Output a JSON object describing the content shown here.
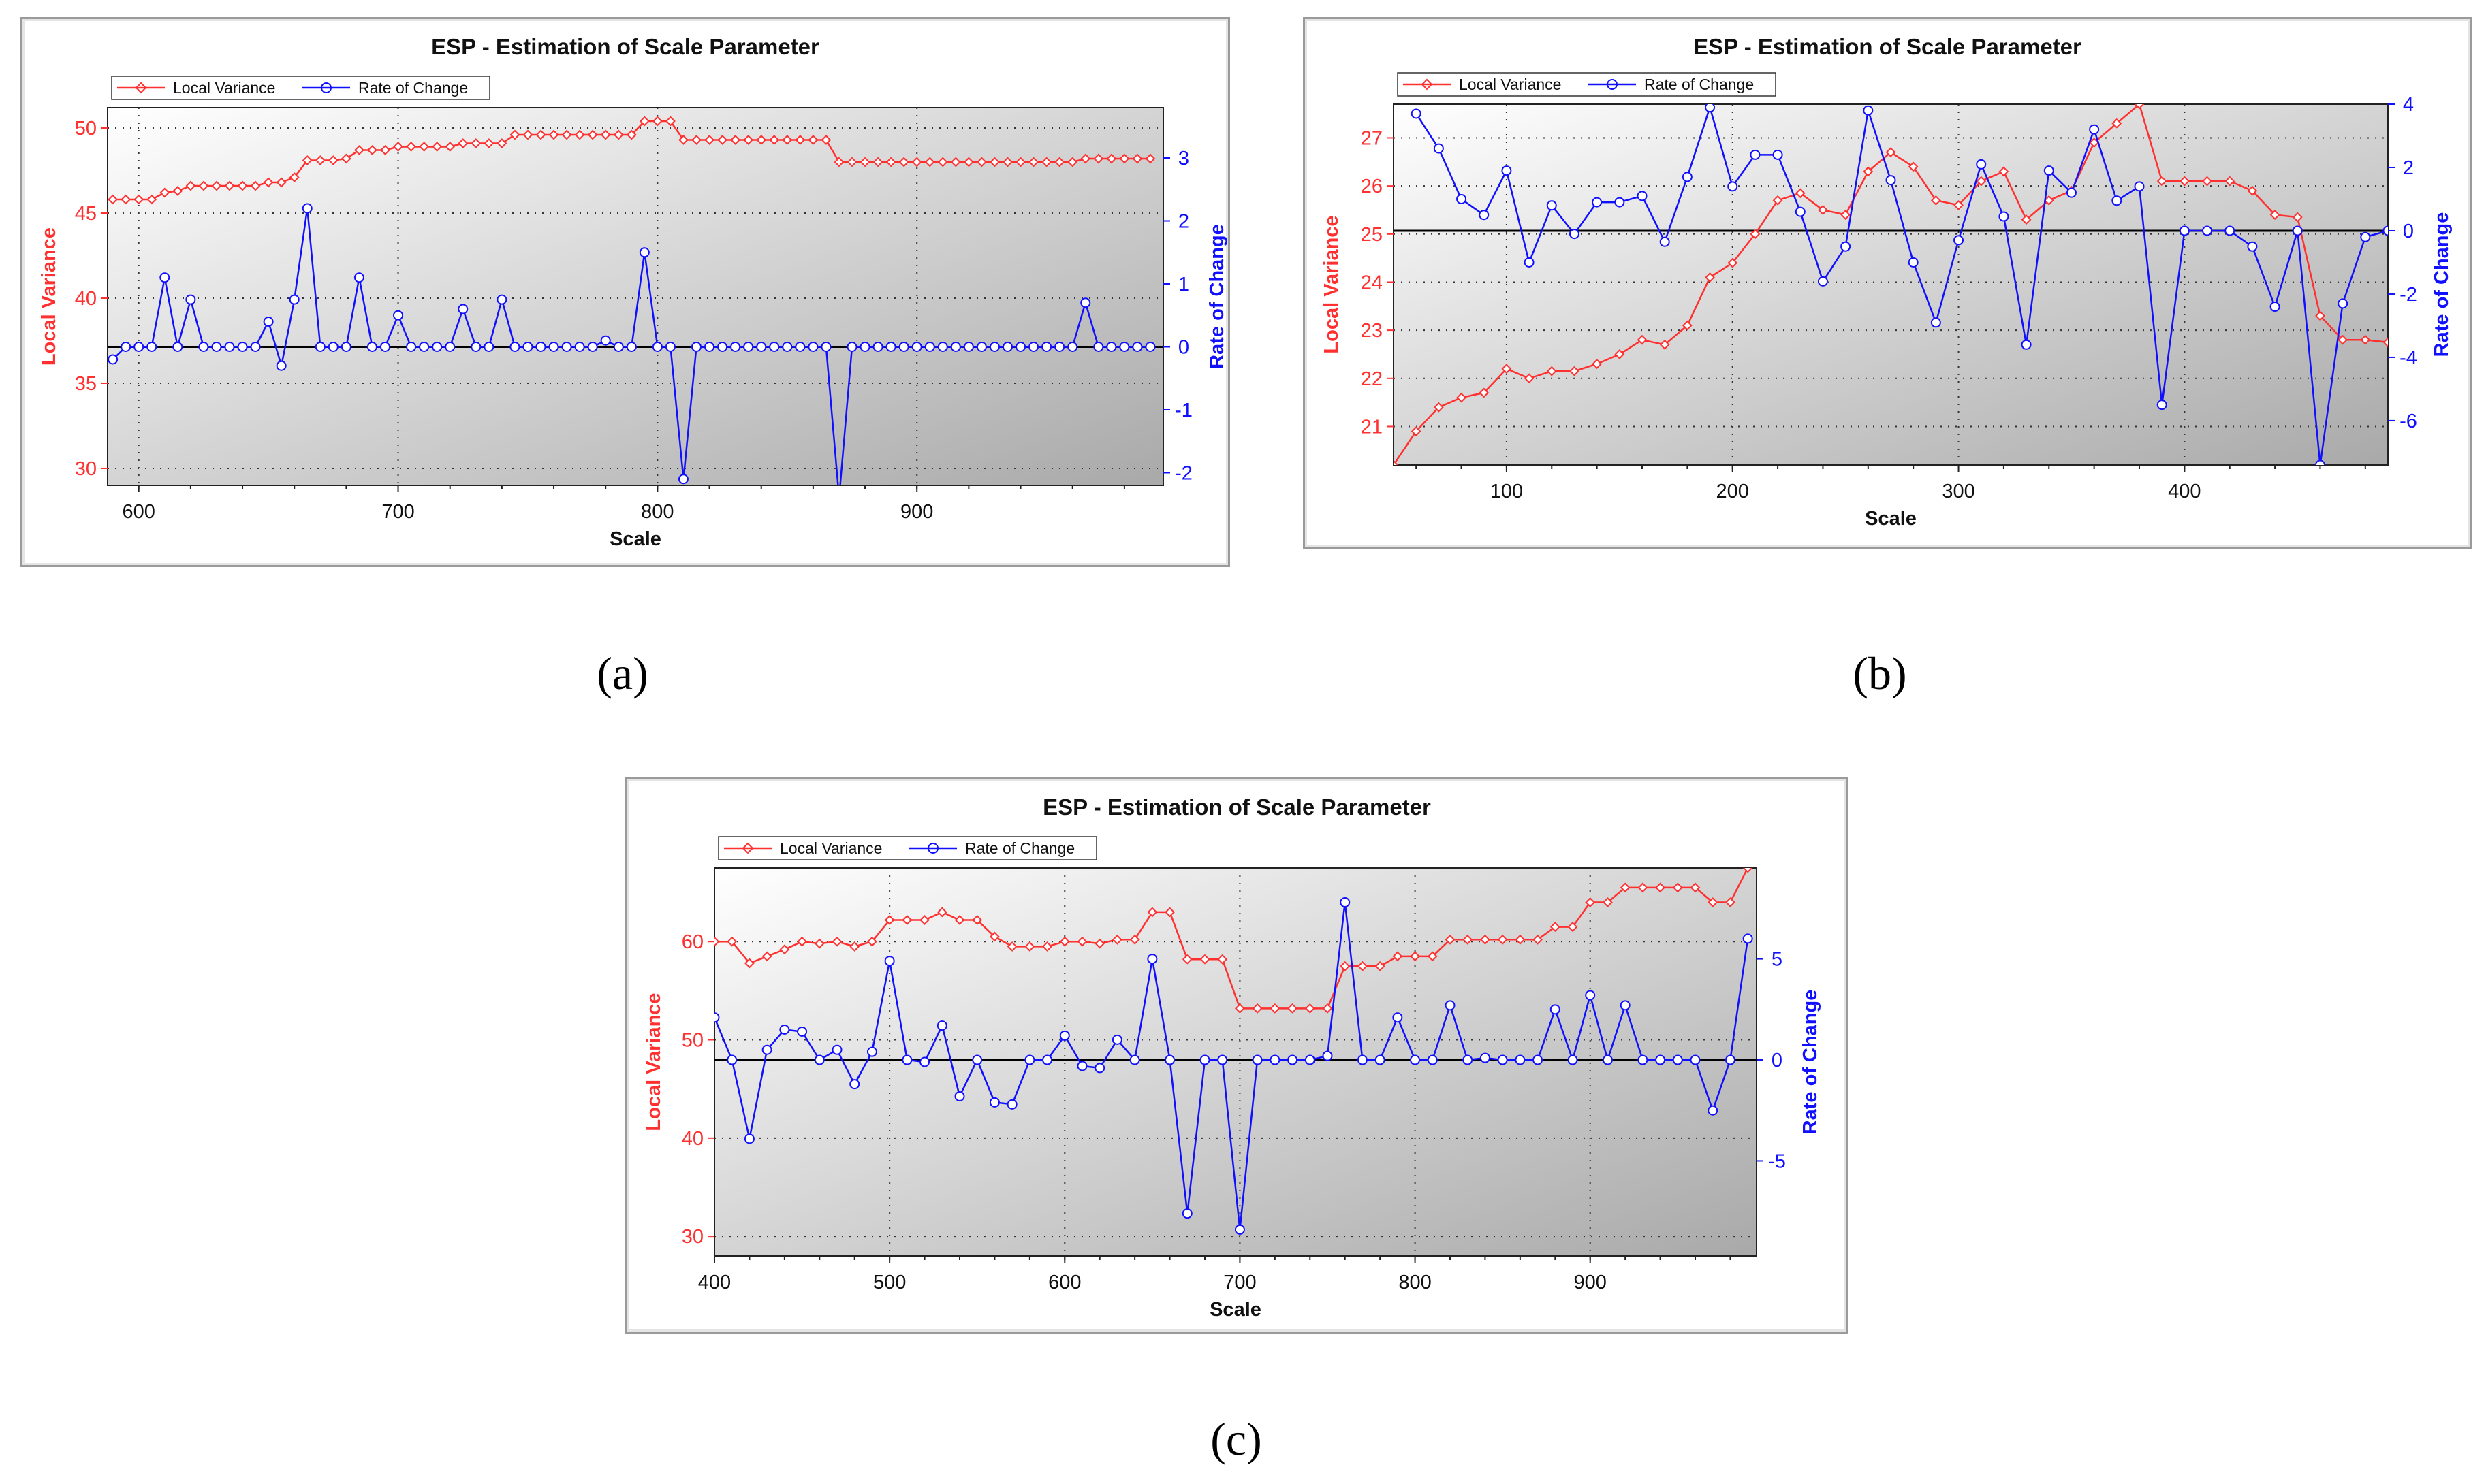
{
  "captions": {
    "a": "(a)",
    "b": "(b)",
    "c": "(c)"
  },
  "colors": {
    "local_variance": "#ff3030",
    "rate_of_change": "#1010ff",
    "frame": "#9a9a9a"
  },
  "chart_data": [
    {
      "id": "a",
      "type": "line",
      "title": "ESP - Estimation of Scale Parameter",
      "xlabel": "Scale",
      "ylabel_left": "Local Variance",
      "ylabel_right": "Rate of Change",
      "legend": [
        "Local Variance",
        "Rate of Change"
      ],
      "legend_position": "top-left",
      "grid": true,
      "xlim": [
        588,
        995
      ],
      "ylim_left": [
        29,
        51.2
      ],
      "ylim_right": [
        -2.2,
        3.8
      ],
      "x_ticks": [
        600,
        700,
        800,
        900
      ],
      "y_ticks_left": [
        30,
        35,
        40,
        45,
        50
      ],
      "y_ticks_right": [
        -2,
        -1,
        0,
        1,
        2,
        3
      ],
      "series": [
        {
          "name": "Local Variance",
          "axis": "left",
          "marker": "diamond",
          "x_start": 590,
          "x_step": 5,
          "values": [
            45.8,
            45.8,
            45.8,
            45.8,
            46.2,
            46.3,
            46.6,
            46.6,
            46.6,
            46.6,
            46.6,
            46.6,
            46.8,
            46.8,
            47.1,
            48.1,
            48.1,
            48.1,
            48.2,
            48.7,
            48.7,
            48.7,
            48.9,
            48.9,
            48.9,
            48.9,
            48.9,
            49.1,
            49.1,
            49.1,
            49.1,
            49.6,
            49.6,
            49.6,
            49.6,
            49.6,
            49.6,
            49.6,
            49.6,
            49.6,
            49.6,
            50.4,
            50.4,
            50.4,
            49.3,
            49.3,
            49.3,
            49.3,
            49.3,
            49.3,
            49.3,
            49.3,
            49.3,
            49.3,
            49.3,
            49.3,
            48.0,
            48.0,
            48.0,
            48.0,
            48.0,
            48.0,
            48.0,
            48.0,
            48.0,
            48.0,
            48.0,
            48.0,
            48.0,
            48.0,
            48.0,
            48.0,
            48.0,
            48.0,
            48.0,
            48.2,
            48.2,
            48.2,
            48.2,
            48.2,
            48.2
          ]
        },
        {
          "name": "Rate of Change",
          "axis": "right",
          "marker": "circle",
          "x_start": 590,
          "x_step": 5,
          "values": [
            -0.2,
            0,
            0,
            0,
            1.1,
            0,
            0.75,
            0,
            0,
            0,
            0,
            0,
            0.4,
            -0.3,
            0.75,
            2.2,
            0,
            0,
            0,
            1.1,
            0,
            0,
            0.5,
            0,
            0,
            0,
            0,
            0.6,
            0,
            0,
            0.75,
            0,
            0,
            0,
            0,
            0,
            0,
            0,
            0.1,
            0,
            0,
            1.5,
            0,
            0,
            -2.1,
            0,
            0,
            0,
            0,
            0,
            0,
            0,
            0,
            0,
            0,
            0,
            -2.4,
            0,
            0,
            0,
            0,
            0,
            0,
            0,
            0,
            0,
            0,
            0,
            0,
            0,
            0,
            0,
            0,
            0,
            0,
            0.7,
            0,
            0,
            0,
            0,
            0
          ]
        }
      ]
    },
    {
      "id": "b",
      "type": "line",
      "title": "ESP - Estimation of Scale Parameter",
      "xlabel": "Scale",
      "ylabel_left": "Local Variance",
      "ylabel_right": "Rate of Change",
      "legend": [
        "Local Variance",
        "Rate of Change"
      ],
      "legend_position": "top-left",
      "grid": true,
      "xlim": [
        50,
        490
      ],
      "ylim_left": [
        20.2,
        27.7
      ],
      "ylim_right": [
        -7.4,
        4.0
      ],
      "x_ticks": [
        100,
        200,
        300,
        400
      ],
      "y_ticks_left": [
        21,
        22,
        23,
        24,
        25,
        26,
        27
      ],
      "y_ticks_right": [
        -6,
        -4,
        -2,
        0,
        2,
        4
      ],
      "series": [
        {
          "name": "Local Variance",
          "axis": "left",
          "marker": "diamond",
          "x_start": 50,
          "x_step": 10,
          "values": [
            20.2,
            20.9,
            21.4,
            21.6,
            21.7,
            22.2,
            22.0,
            22.15,
            22.15,
            22.3,
            22.5,
            22.8,
            22.7,
            23.1,
            24.1,
            24.4,
            25.0,
            25.7,
            25.85,
            25.5,
            25.4,
            26.3,
            26.7,
            26.4,
            25.7,
            25.6,
            26.1,
            26.3,
            25.3,
            25.7,
            25.9,
            26.9,
            27.3,
            27.7,
            26.1,
            26.1,
            26.1,
            26.1,
            25.9,
            25.4,
            25.35,
            23.3,
            22.8,
            22.8,
            22.75
          ]
        },
        {
          "name": "Rate of Change",
          "axis": "right",
          "marker": "circle",
          "x_start": 60,
          "x_step": 10,
          "values": [
            3.7,
            2.6,
            1.0,
            0.5,
            1.9,
            -1.0,
            0.8,
            -0.1,
            0.9,
            0.9,
            1.1,
            -0.35,
            1.7,
            3.9,
            1.4,
            2.4,
            2.4,
            0.6,
            -1.6,
            -0.5,
            3.8,
            1.6,
            -1.0,
            -2.9,
            -0.3,
            2.1,
            0.45,
            -3.6,
            1.9,
            1.2,
            3.2,
            0.95,
            1.4,
            -5.5,
            0,
            0,
            0,
            -0.5,
            -2.4,
            0,
            -7.4,
            -2.3,
            -0.2,
            0
          ]
        }
      ]
    },
    {
      "id": "c",
      "type": "line",
      "title": "ESP - Estimation of Scale Parameter",
      "xlabel": "Scale",
      "ylabel_left": "Local Variance",
      "ylabel_right": "Rate of Change",
      "legend": [
        "Local Variance",
        "Rate of Change"
      ],
      "legend_position": "top-left",
      "grid": true,
      "xlim": [
        400,
        995
      ],
      "ylim_left": [
        28,
        67.5
      ],
      "ylim_right": [
        -9.7,
        9.5
      ],
      "x_ticks": [
        400,
        500,
        600,
        700,
        800,
        900
      ],
      "y_ticks_left": [
        30,
        40,
        50,
        60
      ],
      "y_ticks_right": [
        -5,
        0,
        5
      ],
      "series": [
        {
          "name": "Local Variance",
          "axis": "left",
          "marker": "diamond",
          "x_start": 400,
          "x_step": 10,
          "values": [
            60,
            60,
            57.8,
            58.5,
            59.2,
            60,
            59.8,
            60,
            59.5,
            60,
            62.2,
            62.2,
            62.2,
            63,
            62.2,
            62.2,
            60.5,
            59.5,
            59.5,
            59.5,
            60,
            60,
            59.8,
            60.2,
            60.2,
            63,
            63,
            58.2,
            58.2,
            58.2,
            53.2,
            53.2,
            53.2,
            53.2,
            53.2,
            53.2,
            57.5,
            57.5,
            57.5,
            58.5,
            58.5,
            58.5,
            60.2,
            60.2,
            60.2,
            60.2,
            60.2,
            60.2,
            61.5,
            61.5,
            64,
            64,
            65.5,
            65.5,
            65.5,
            65.5,
            65.5,
            64,
            64,
            67.5
          ]
        },
        {
          "name": "Rate of Change",
          "axis": "right",
          "marker": "circle",
          "x_start": 400,
          "x_step": 10,
          "values": [
            2.1,
            0,
            -3.9,
            0.5,
            1.5,
            1.4,
            0,
            0.5,
            -1.2,
            0.4,
            4.9,
            0,
            -0.1,
            1.7,
            -1.8,
            0,
            -2.1,
            -2.2,
            0,
            0,
            1.2,
            -0.3,
            -0.4,
            1,
            0,
            5,
            0,
            -7.6,
            0,
            0,
            -8.4,
            0,
            0,
            0,
            0,
            0.2,
            7.8,
            0,
            0,
            2.1,
            0,
            0,
            2.7,
            0,
            0.1,
            0,
            0,
            0,
            2.5,
            0,
            3.2,
            0,
            2.7,
            0,
            0,
            0,
            0,
            -2.5,
            0,
            6
          ]
        }
      ]
    }
  ]
}
